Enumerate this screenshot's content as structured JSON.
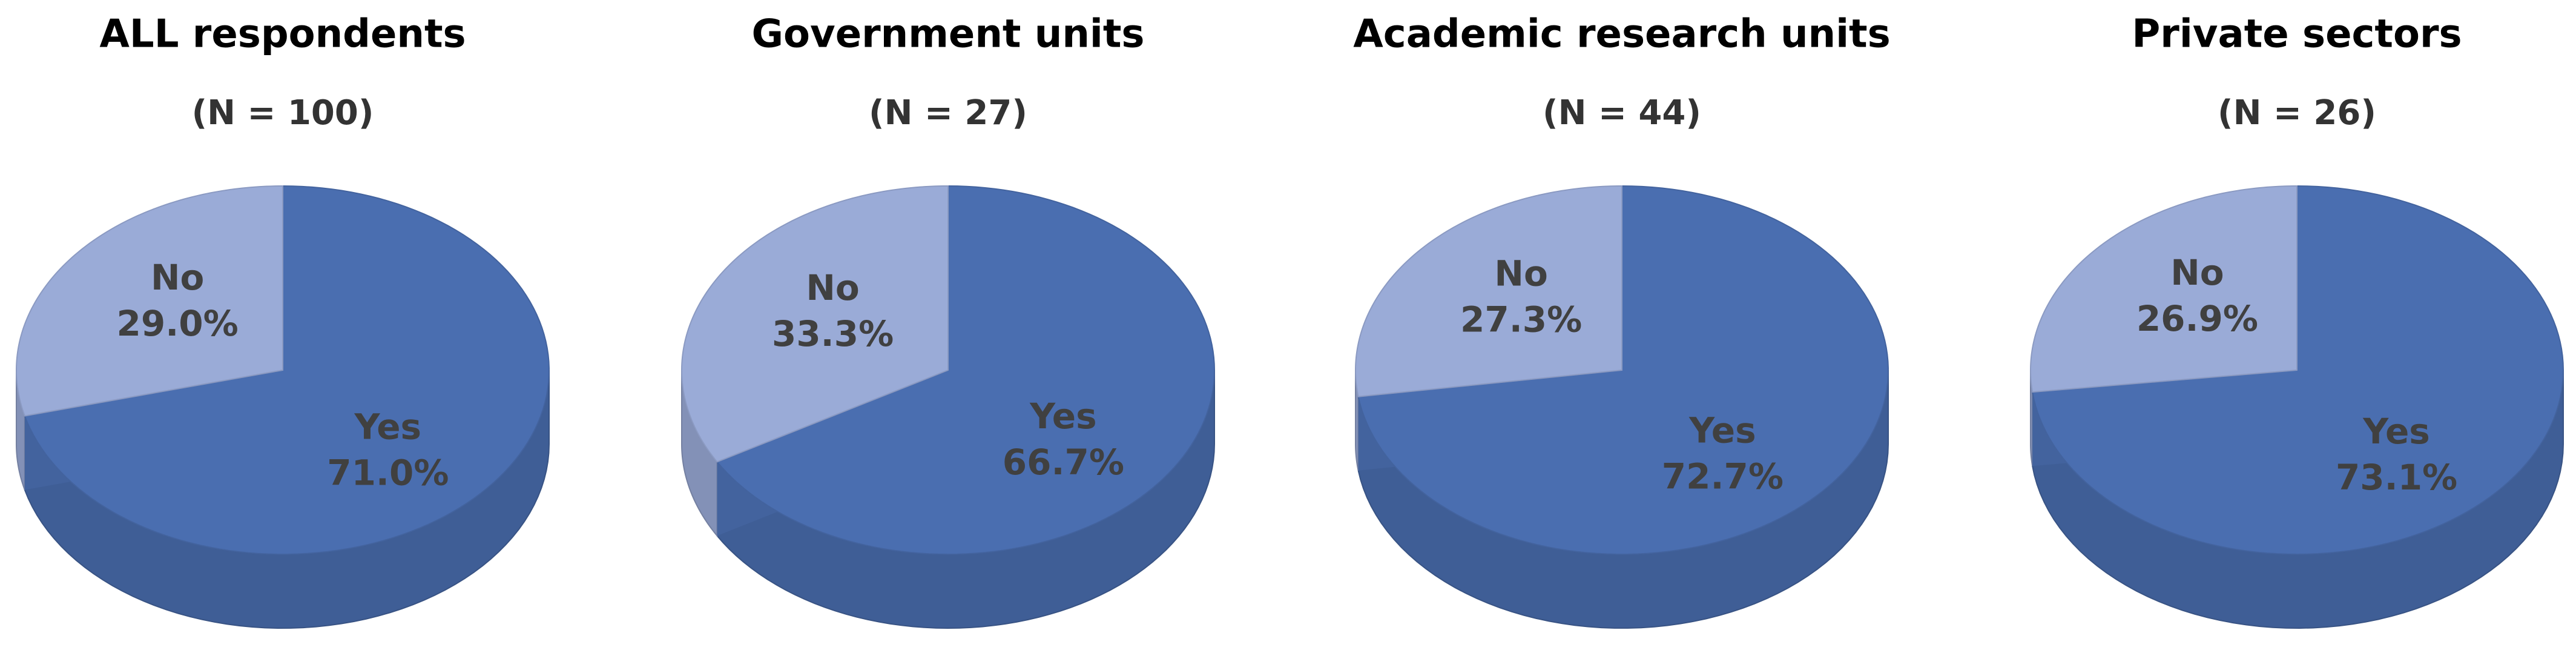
{
  "chart_data": [
    {
      "type": "pie",
      "title": "ALL respondents",
      "subtitle": "(N = 100)",
      "categories": [
        "Yes",
        "No"
      ],
      "values": [
        71.0,
        29.0
      ],
      "value_labels": [
        "71.0%",
        "29.0%"
      ],
      "colors": [
        "#4a6eb0",
        "#9aabd7"
      ]
    },
    {
      "type": "pie",
      "title": "Government units",
      "subtitle": "(N = 27)",
      "categories": [
        "Yes",
        "No"
      ],
      "values": [
        66.7,
        33.3
      ],
      "value_labels": [
        "66.7%",
        "33.3%"
      ],
      "colors": [
        "#4a6eb0",
        "#9aabd7"
      ]
    },
    {
      "type": "pie",
      "title": "Academic research units",
      "subtitle": "(N = 44)",
      "categories": [
        "Yes",
        "No"
      ],
      "values": [
        72.7,
        27.3
      ],
      "value_labels": [
        "72.7%",
        "27.3%"
      ],
      "colors": [
        "#4a6eb0",
        "#9aabd7"
      ]
    },
    {
      "type": "pie",
      "title": "Private sectors",
      "subtitle": "(N = 26)",
      "categories": [
        "Yes",
        "No"
      ],
      "values": [
        73.1,
        26.9
      ],
      "value_labels": [
        "73.1%",
        "26.9%"
      ],
      "colors": [
        "#4a6eb0",
        "#9aabd7"
      ]
    }
  ]
}
